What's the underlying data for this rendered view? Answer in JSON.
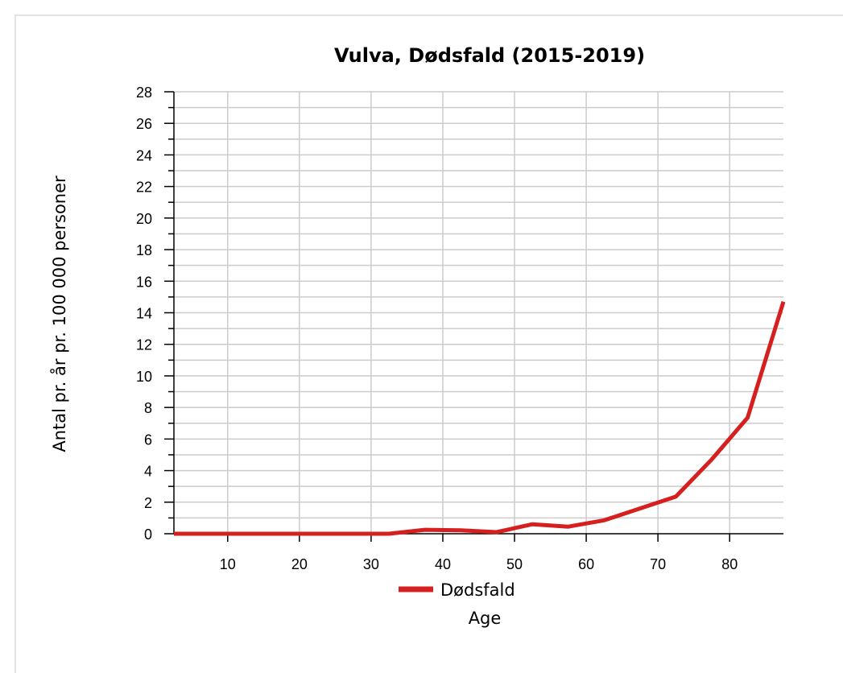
{
  "chart_data": {
    "type": "line",
    "title": "Vulva, Dødsfald (2015-2019)",
    "xlabel": "Age",
    "ylabel": "Antal pr. år pr. 100 000 personer",
    "xlim": [
      2.5,
      87.5
    ],
    "ylim": [
      0,
      28
    ],
    "xticks": [
      10,
      20,
      30,
      40,
      50,
      60,
      70,
      80
    ],
    "yticks": [
      0,
      2,
      4,
      6,
      8,
      10,
      12,
      14,
      16,
      18,
      20,
      22,
      24,
      26,
      28
    ],
    "grid": true,
    "legend_position": "bottom",
    "series": [
      {
        "name": "Dødsfald",
        "color": "#d62020",
        "x": [
          2.5,
          7.5,
          12.5,
          17.5,
          22.5,
          27.5,
          32.5,
          37.5,
          42.5,
          47.5,
          52.5,
          57.5,
          62.5,
          67.5,
          72.5,
          77.5,
          82.5,
          87.5
        ],
        "y": [
          0,
          0,
          0,
          0,
          0,
          0,
          0,
          0.25,
          0.22,
          0.1,
          0.6,
          0.45,
          0.85,
          1.6,
          2.35,
          4.7,
          7.35,
          14.7
        ]
      }
    ]
  }
}
